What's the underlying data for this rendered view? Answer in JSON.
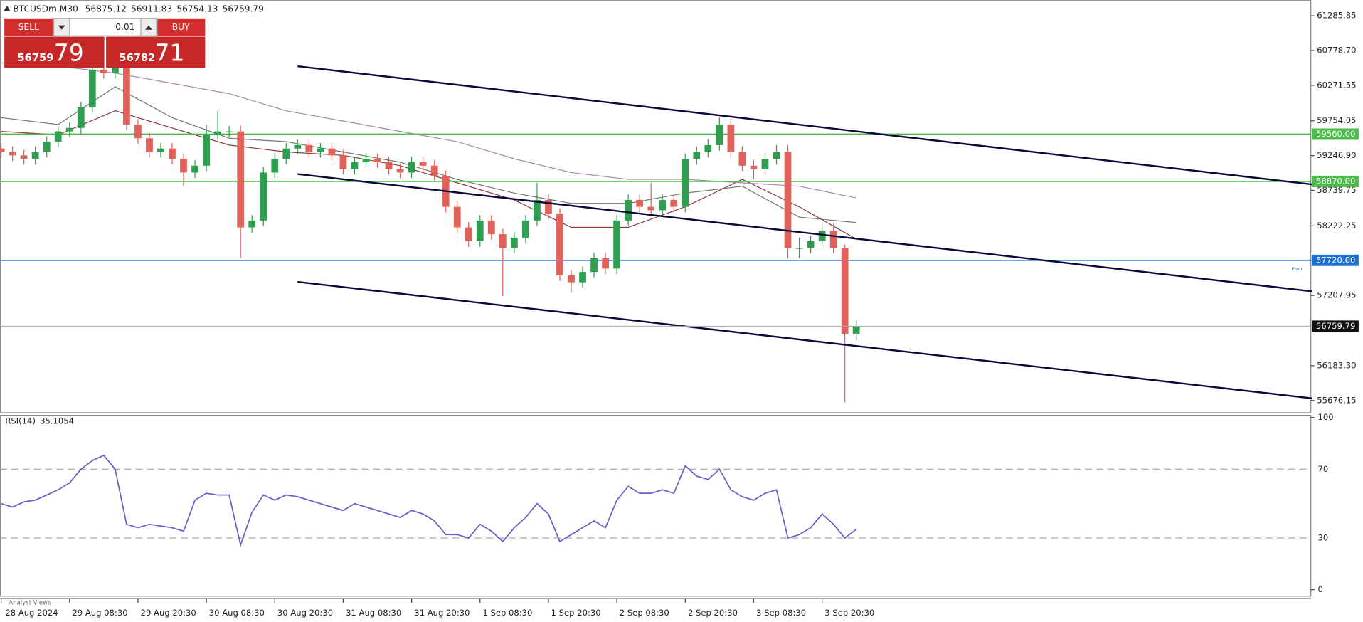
{
  "header": {
    "symbol": "BTCUSDm,M30",
    "open": 56875.12,
    "high": 56911.83,
    "low": 56754.13
  },
  "trade_panel": {
    "sell": "SELL",
    "buy": "BUY",
    "lot": 0.01,
    "bid_big": 56759,
    "bid_small": 79,
    "ask_big": 56782,
    "ask_small": 71
  },
  "analyst_views": "Analyst Views",
  "chart_data": [
    {
      "type": "candlestick",
      "categories": [
        "28 Aug 2024",
        null,
        null,
        null,
        null,
        null,
        "29 Aug 08:30",
        null,
        null,
        null,
        null,
        null,
        "29 Aug 20:30",
        null,
        null,
        null,
        null,
        null,
        "30 Aug 08:30",
        null,
        null,
        null,
        null,
        null,
        "30 Aug 20:30",
        null,
        null,
        null,
        null,
        null,
        "31 Aug 08:30",
        null,
        null,
        null,
        null,
        null,
        "31 Aug 20:30",
        null,
        null,
        null,
        null,
        null,
        "1 Sep 08:30",
        null,
        null,
        null,
        null,
        null,
        "1 Sep 20:30",
        null,
        null,
        null,
        null,
        null,
        "2 Sep 08:30",
        null,
        null,
        null,
        null,
        null,
        "2 Sep 20:30",
        null,
        null,
        null,
        null,
        null,
        "3 Sep 08:30",
        null,
        null,
        null,
        null,
        null,
        "3 Sep 20:30",
        null,
        null,
        null
      ],
      "open": [
        59350,
        59300,
        59250,
        59200,
        59300,
        59450,
        59600,
        59650,
        59950,
        60500,
        60450,
        60600,
        59700,
        59500,
        59300,
        59350,
        59200,
        59000,
        59100,
        59550,
        59600,
        59600,
        58200,
        58300,
        59000,
        59200,
        59350,
        59400,
        59300,
        59350,
        59250,
        59050,
        59150,
        59200,
        59150,
        59050,
        59000,
        59150,
        59100,
        58950,
        58500,
        58200,
        58000,
        58300,
        58100,
        57900,
        58050,
        58300,
        58600,
        58400,
        57500,
        57400,
        57550,
        57750,
        57600,
        58300,
        58600,
        58500,
        58450,
        58600,
        58500,
        59200,
        59300,
        59400,
        59700,
        59300,
        59100,
        59050,
        59200,
        59300,
        57900,
        57900,
        58000,
        58150,
        57900,
        56650
      ],
      "high": [
        59430,
        59380,
        59330,
        59380,
        59530,
        59680,
        59730,
        60030,
        60580,
        60580,
        60800,
        60650,
        59780,
        59580,
        59430,
        59430,
        59280,
        59180,
        59700,
        59900,
        59680,
        59680,
        58380,
        59080,
        59280,
        59430,
        59480,
        59480,
        59430,
        59430,
        59330,
        59230,
        59280,
        59280,
        59230,
        59130,
        59230,
        59230,
        59180,
        59030,
        58580,
        58280,
        58380,
        58380,
        58180,
        58130,
        58380,
        58850,
        58680,
        58480,
        57580,
        57630,
        57830,
        57830,
        58380,
        58680,
        58680,
        58850,
        58680,
        58680,
        59280,
        59380,
        59480,
        59800,
        59780,
        59380,
        59180,
        59280,
        59400,
        59400,
        58050,
        58080,
        58300,
        58250,
        57950,
        56850
      ],
      "low": [
        59220,
        59170,
        59120,
        59120,
        59220,
        59370,
        59520,
        59570,
        59870,
        60370,
        60370,
        59620,
        59420,
        59220,
        59220,
        59120,
        58800,
        58920,
        59020,
        59470,
        59520,
        57750,
        58120,
        58220,
        58920,
        59120,
        59270,
        59220,
        59220,
        59170,
        58970,
        58970,
        59070,
        59070,
        58970,
        58920,
        58920,
        59020,
        58870,
        58420,
        58120,
        57920,
        57920,
        58020,
        57200,
        57820,
        57970,
        58220,
        58320,
        57420,
        57250,
        57320,
        57470,
        57520,
        57520,
        58220,
        58420,
        58370,
        58370,
        58420,
        58420,
        59120,
        59220,
        59320,
        59220,
        59020,
        58900,
        58970,
        59120,
        57750,
        57750,
        57820,
        57920,
        57820,
        55650,
        56550
      ],
      "close": [
        59300,
        59250,
        59200,
        59300,
        59450,
        59600,
        59650,
        59950,
        60500,
        60450,
        60600,
        59700,
        59500,
        59300,
        59350,
        59200,
        59000,
        59100,
        59550,
        59600,
        59600,
        58200,
        58300,
        59000,
        59200,
        59350,
        59400,
        59300,
        59350,
        59250,
        59050,
        59150,
        59200,
        59150,
        59050,
        59000,
        59150,
        59100,
        58950,
        58500,
        58200,
        58000,
        58300,
        58100,
        57900,
        58050,
        58300,
        58600,
        58400,
        57500,
        57400,
        57550,
        57750,
        57600,
        58300,
        58600,
        58500,
        58450,
        58600,
        58500,
        59200,
        59300,
        59400,
        59700,
        59300,
        59100,
        59050,
        59200,
        59300,
        57900,
        57900,
        58000,
        58150,
        57900,
        56650,
        56759.79
      ],
      "up_color": "#2e9e4f",
      "down_color": "#e0625a",
      "moving_averages": [
        {
          "color": "#6b7b6b",
          "x": [
            0,
            5,
            10,
            15,
            20,
            25,
            30,
            35,
            40,
            45,
            50,
            55,
            60,
            65,
            70,
            75
          ],
          "values": [
            59800,
            59700,
            60250,
            59800,
            59500,
            59450,
            59300,
            59150,
            58900,
            58700,
            58550,
            58550,
            58700,
            58800,
            58350,
            58270
          ]
        },
        {
          "color": "#8b3a3a",
          "x": [
            0,
            5,
            10,
            15,
            20,
            25,
            30,
            35,
            40,
            45,
            50,
            55,
            60,
            65,
            70,
            75
          ],
          "values": [
            59600,
            59550,
            59900,
            59650,
            59400,
            59300,
            59250,
            59100,
            58850,
            58600,
            58200,
            58200,
            58500,
            58900,
            58500,
            58030
          ]
        },
        {
          "color": "#a58aa5",
          "x": [
            0,
            5,
            10,
            15,
            20,
            25,
            30,
            35,
            40,
            45,
            50,
            55,
            60,
            65,
            70,
            75
          ],
          "values": [
            60600,
            60550,
            60450,
            60300,
            60150,
            59900,
            59750,
            59600,
            59450,
            59200,
            59000,
            58900,
            58900,
            58850,
            58800,
            58630
          ]
        }
      ],
      "trendlines": [
        {
          "x": [
            26,
            115
          ],
          "y": [
            60550,
            58826
          ]
        },
        {
          "x": [
            26,
            115
          ],
          "y": [
            58978,
            57267
          ]
        },
        {
          "x": [
            26,
            115
          ],
          "y": [
            57406,
            55707
          ]
        }
      ],
      "trendline_color": "#0a0a3a",
      "levels": [
        {
          "value": 59560,
          "label": "59560.00",
          "color": "#4cbb4c"
        },
        {
          "value": 58870,
          "label": "58870.00",
          "color": "#4cbb4c"
        },
        {
          "value": 57720,
          "label": "57720.00",
          "color": "#1e6fd0",
          "note": "Pivot"
        }
      ],
      "ylim": [
        55504,
        61463
      ],
      "yticks": [
        61285.85,
        {
          "value": 60778.7,
          "label": "60778.70"
        },
        60271.55,
        59754.05,
        {
          "value": 59246.9,
          "label": "59246.90"
        },
        58739.75,
        58222.25,
        57207.95,
        {
          "value": 56183.3,
          "label": "56183.30"
        },
        55676.15
      ]
    },
    {
      "type": "line",
      "title": "RSI(14)",
      "color": "#6a5acd",
      "values": [
        50,
        48,
        51,
        52,
        55,
        58,
        62,
        70,
        75,
        78,
        70,
        38,
        36,
        38,
        37,
        36,
        34,
        52,
        56,
        55,
        55,
        26,
        45,
        55,
        52,
        55,
        54,
        52,
        50,
        48,
        46,
        50,
        48,
        46,
        44,
        42,
        46,
        44,
        40,
        32,
        32,
        30,
        38,
        34,
        28,
        36,
        42,
        50,
        44,
        28,
        32,
        36,
        40,
        36,
        52,
        60,
        56,
        56,
        58,
        56,
        72,
        66,
        64,
        70,
        58,
        54,
        52,
        56,
        58,
        30,
        32,
        36,
        44,
        38,
        30,
        35.1054
      ],
      "ylim": [
        0,
        100
      ],
      "yticks": [
        0,
        30,
        70,
        100
      ]
    }
  ]
}
